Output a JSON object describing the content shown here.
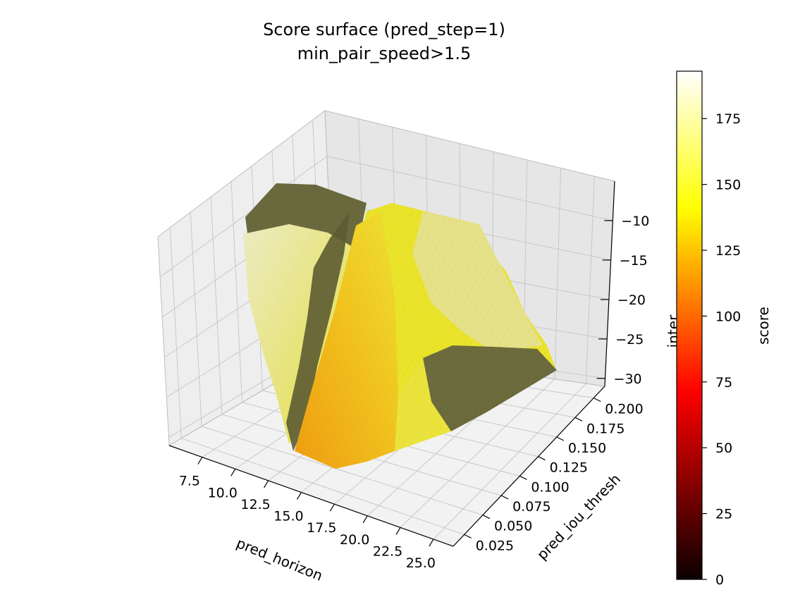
{
  "chart_data": {
    "type": "surface3d",
    "title": "Score surface (pred_step=1)",
    "subtitle": "min_pair_speed>1.5",
    "xlabel": "pred_horizon",
    "ylabel": "pred_iou_thresh",
    "zlabel": "inter",
    "colorbar_label": "score",
    "colormap": "hot",
    "xlim": [
      5.0,
      26.5
    ],
    "ylim": [
      0.01,
      0.215
    ],
    "zlim": [
      -31,
      -5
    ],
    "x_ticks": [
      "7.5",
      "10.0",
      "12.5",
      "15.0",
      "17.5",
      "20.0",
      "22.5",
      "25.0"
    ],
    "y_ticks": [
      "0.025",
      "0.050",
      "0.075",
      "0.100",
      "0.125",
      "0.150",
      "0.175",
      "0.200"
    ],
    "z_ticks": [
      "−10",
      "−15",
      "−20",
      "−25",
      "−30"
    ],
    "colorbar_ticks": [
      "0",
      "25",
      "50",
      "75",
      "100",
      "125",
      "150",
      "175"
    ],
    "colorbar_range": [
      0,
      193
    ],
    "grid": true,
    "colors": {
      "dark_plateau": "#6b6a3c",
      "yellow": "#e8e21f",
      "orange": "#f0a41a",
      "pale": "#ecebb0"
    }
  }
}
